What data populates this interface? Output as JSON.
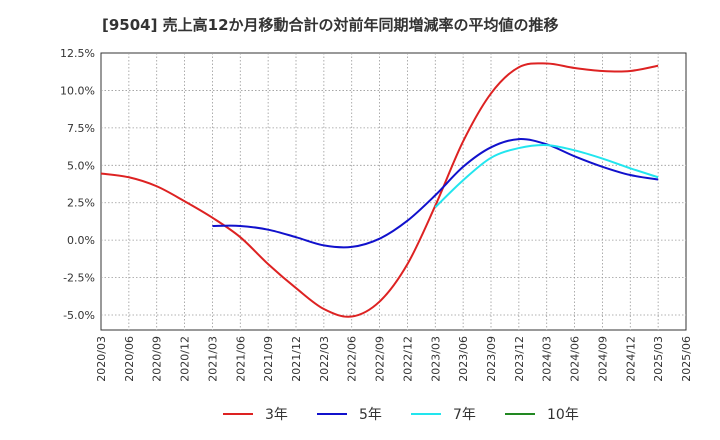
{
  "chart_data": {
    "type": "line",
    "title": "[9504]  売上高12か月移動合計の対前年同期増減率の平均値の推移",
    "xlabel": "",
    "ylabel": "",
    "x_ticks": [
      "2020/03",
      "2020/06",
      "2020/09",
      "2020/12",
      "2021/03",
      "2021/06",
      "2021/09",
      "2021/12",
      "2022/03",
      "2022/06",
      "2022/09",
      "2022/12",
      "2023/03",
      "2023/06",
      "2023/09",
      "2023/12",
      "2024/03",
      "2024/06",
      "2024/09",
      "2024/12",
      "2025/03",
      "2025/06"
    ],
    "y_ticks": [
      "12.5%",
      "10.0%",
      "7.5%",
      "5.0%",
      "2.5%",
      "0.0%",
      "-2.5%",
      "-5.0%"
    ],
    "ylim": [
      -6.0,
      12.5
    ],
    "grid": true,
    "legend_position": "bottom",
    "series": [
      {
        "name": "3年",
        "color": "#dd2222",
        "points": [
          [
            "2020/03",
            4.45
          ],
          [
            "2020/06",
            4.2
          ],
          [
            "2020/09",
            3.6
          ],
          [
            "2020/12",
            2.6
          ],
          [
            "2021/03",
            1.5
          ],
          [
            "2021/06",
            0.2
          ],
          [
            "2021/09",
            -1.6
          ],
          [
            "2021/12",
            -3.2
          ],
          [
            "2022/03",
            -4.6
          ],
          [
            "2022/06",
            -5.1
          ],
          [
            "2022/09",
            -4.1
          ],
          [
            "2022/12",
            -1.6
          ],
          [
            "2023/03",
            2.3
          ],
          [
            "2023/06",
            6.6
          ],
          [
            "2023/09",
            9.8
          ],
          [
            "2023/12",
            11.55
          ],
          [
            "2024/03",
            11.8
          ],
          [
            "2024/06",
            11.5
          ],
          [
            "2024/09",
            11.3
          ],
          [
            "2024/12",
            11.3
          ],
          [
            "2025/03",
            11.65
          ]
        ]
      },
      {
        "name": "5年",
        "color": "#1111cc",
        "points": [
          [
            "2021/03",
            0.95
          ],
          [
            "2021/06",
            0.95
          ],
          [
            "2021/09",
            0.7
          ],
          [
            "2021/12",
            0.2
          ],
          [
            "2022/03",
            -0.35
          ],
          [
            "2022/06",
            -0.45
          ],
          [
            "2022/09",
            0.1
          ],
          [
            "2022/12",
            1.3
          ],
          [
            "2023/03",
            3.0
          ],
          [
            "2023/06",
            4.9
          ],
          [
            "2023/09",
            6.2
          ],
          [
            "2023/12",
            6.75
          ],
          [
            "2024/03",
            6.4
          ],
          [
            "2024/06",
            5.6
          ],
          [
            "2024/09",
            4.9
          ],
          [
            "2024/12",
            4.35
          ],
          [
            "2025/03",
            4.05
          ]
        ]
      },
      {
        "name": "7年",
        "color": "#22e5ee",
        "points": [
          [
            "2023/03",
            2.2
          ],
          [
            "2023/06",
            4.0
          ],
          [
            "2023/09",
            5.5
          ],
          [
            "2023/12",
            6.15
          ],
          [
            "2024/03",
            6.35
          ],
          [
            "2024/06",
            6.0
          ],
          [
            "2024/09",
            5.45
          ],
          [
            "2024/12",
            4.8
          ],
          [
            "2025/03",
            4.2
          ]
        ]
      },
      {
        "name": "10年",
        "color": "#228822",
        "points": []
      }
    ]
  }
}
